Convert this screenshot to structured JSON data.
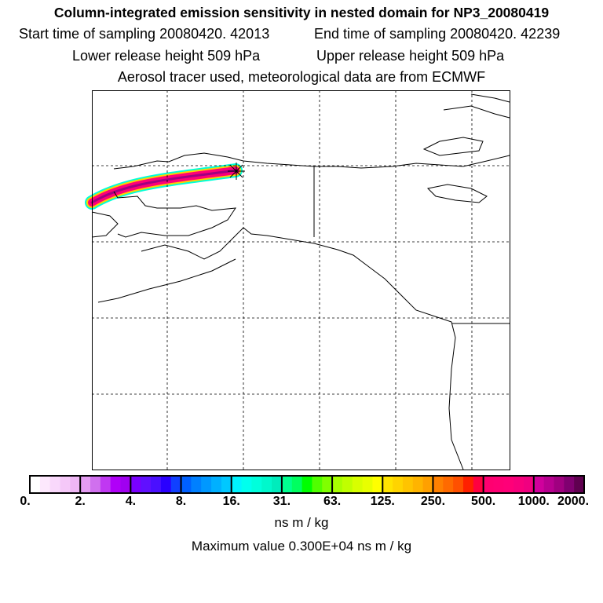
{
  "header": {
    "title": "Column-integrated emission sensitivity in nested domain for NP3_20080419",
    "start_time": "Start time of sampling 20080420. 42013",
    "end_time": "End time of sampling 20080420. 42239",
    "lower_release": "Lower release height  509 hPa",
    "upper_release": "Upper release height  509 hPa",
    "tracer_info": "Aerosol tracer used, meteorological data are from ECMWF"
  },
  "colorbar": {
    "ticks": [
      "0.",
      "2.",
      "4.",
      "8.",
      "16.",
      "31.",
      "63.",
      "125.",
      "250.",
      "500.",
      "1000.",
      "2000."
    ],
    "segments": [
      [
        "#ffffff",
        "#fde8fd",
        "#f9d8fb",
        "#f5c8f8",
        "#eeb6f4"
      ],
      [
        "#e49cf2",
        "#d070ee",
        "#c038f2",
        "#b000f8",
        "#a000f0"
      ],
      [
        "#7a00ff",
        "#6010ff",
        "#4a10ff",
        "#2a00ff",
        "#1040ff"
      ],
      [
        "#0060ff",
        "#0080ff",
        "#0098ff",
        "#00b0ff",
        "#00c8ff"
      ],
      [
        "#00f4ff",
        "#00ffee",
        "#00ffdc",
        "#00f8cc",
        "#00ecbc"
      ],
      [
        "#00ff90",
        "#00ff60",
        "#00ff00",
        "#50ff00",
        "#80ff00"
      ],
      [
        "#a8ff00",
        "#c0ff00",
        "#d8ff00",
        "#e8ff00",
        "#ffff00"
      ],
      [
        "#ffe400",
        "#ffd400",
        "#ffc400",
        "#ffb400",
        "#ffa000"
      ],
      [
        "#ff8000",
        "#ff6a00",
        "#ff5000",
        "#ff2000",
        "#ff0040"
      ],
      [
        "#ff0070",
        "#ff0074",
        "#ff0078",
        "#f8007c",
        "#f00080"
      ],
      [
        "#d0009c",
        "#b80090",
        "#a00080",
        "#800070",
        "#600050"
      ]
    ],
    "unit": "ns m / kg",
    "max_value": "Maximum value  0.300E+04 ns m / kg"
  }
}
